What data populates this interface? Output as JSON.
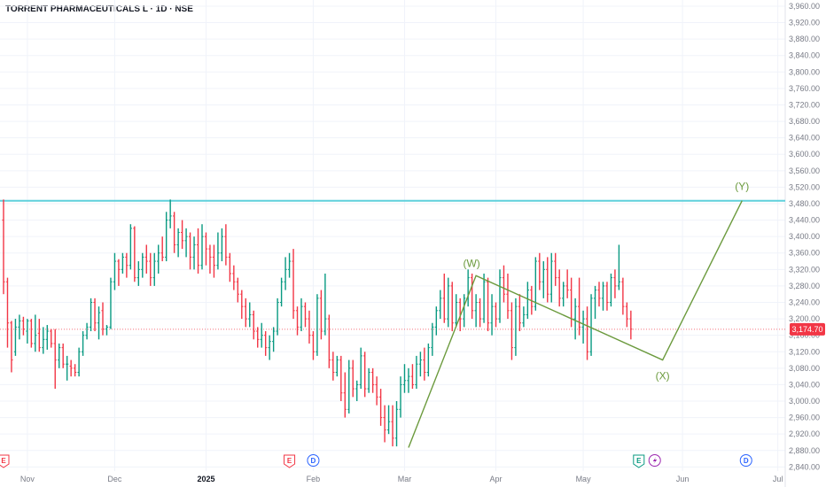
{
  "header": {
    "symbol": "TORRENT PHARMACEUTICALS L",
    "interval": "1D",
    "exchange": "NSE",
    "separator": " · "
  },
  "current_price": {
    "label": "3,174.70",
    "value": 3174.7,
    "color": "#f23645"
  },
  "colors": {
    "up": "#089981",
    "down": "#f23645",
    "resistance": "#5fd0dc",
    "wave": "#6b9a3d",
    "earnings": "#f23645",
    "earnings_upcoming": "#089981",
    "dividend": "#2962ff",
    "split": "#9c27b0"
  },
  "chart_data": {
    "type": "ohlc_bar",
    "price_axis": {
      "ylim": [
        2830,
        3975
      ],
      "ticks": [
        "3,960.00",
        "3,920.00",
        "3,880.00",
        "3,840.00",
        "3,800.00",
        "3,760.00",
        "3,720.00",
        "3,680.00",
        "3,640.00",
        "3,600.00",
        "3,560.00",
        "3,520.00",
        "3,480.00",
        "3,440.00",
        "3,400.00",
        "3,360.00",
        "3,320.00",
        "3,280.00",
        "3,240.00",
        "3,200.00",
        "3,160.00",
        "3,120.00",
        "3,080.00",
        "3,040.00",
        "3,000.00",
        "2,960.00",
        "2,920.00",
        "2,880.00",
        "2,840.00"
      ]
    },
    "time_axis": {
      "labels": [
        {
          "text": "Nov",
          "bar": 6,
          "bold": false
        },
        {
          "text": "Dec",
          "bar": 28,
          "bold": false
        },
        {
          "text": "2025",
          "bar": 51,
          "bold": true
        },
        {
          "text": "Feb",
          "bar": 78,
          "bold": false
        },
        {
          "text": "Mar",
          "bar": 101,
          "bold": false
        },
        {
          "text": "Apr",
          "bar": 124,
          "bold": false
        },
        {
          "text": "May",
          "bar": 146,
          "bold": false
        },
        {
          "text": "Jun",
          "bar": 171,
          "bold": false
        },
        {
          "text": "Jul",
          "bar": 195,
          "bold": false
        }
      ]
    },
    "horizontal_line": {
      "name": "resistance",
      "value": 3487
    },
    "waves": {
      "points": [
        {
          "label": "",
          "bar": 102,
          "value": 2887
        },
        {
          "label": "(W)",
          "bar": 119,
          "value": 3305
        },
        {
          "label": "(X)",
          "bar": 166,
          "value": 3100
        },
        {
          "label": "(Y)",
          "bar": 186,
          "value": 3487
        }
      ]
    },
    "events": [
      {
        "type": "E",
        "bar": 0
      },
      {
        "type": "E",
        "bar": 72
      },
      {
        "type": "D",
        "bar": 78
      },
      {
        "type": "E",
        "bar": 160
      },
      {
        "type": "split",
        "bar": 164
      },
      {
        "type": "D",
        "bar": 187
      }
    ],
    "bars": [
      {
        "o": 3440,
        "h": 3490,
        "l": 3260,
        "c": 3290
      },
      {
        "o": 3290,
        "h": 3300,
        "l": 3130,
        "c": 3190
      },
      {
        "o": 3190,
        "h": 3195,
        "l": 3070,
        "c": 3100
      },
      {
        "o": 3120,
        "h": 3200,
        "l": 3110,
        "c": 3180
      },
      {
        "o": 3180,
        "h": 3210,
        "l": 3150,
        "c": 3195
      },
      {
        "o": 3195,
        "h": 3205,
        "l": 3160,
        "c": 3175
      },
      {
        "o": 3170,
        "h": 3200,
        "l": 3140,
        "c": 3195
      },
      {
        "o": 3195,
        "h": 3200,
        "l": 3130,
        "c": 3140
      },
      {
        "o": 3140,
        "h": 3210,
        "l": 3120,
        "c": 3160
      },
      {
        "o": 3165,
        "h": 3200,
        "l": 3120,
        "c": 3130
      },
      {
        "o": 3130,
        "h": 3180,
        "l": 3115,
        "c": 3150
      },
      {
        "o": 3150,
        "h": 3185,
        "l": 3125,
        "c": 3170
      },
      {
        "o": 3170,
        "h": 3175,
        "l": 3130,
        "c": 3140
      },
      {
        "o": 3140,
        "h": 3175,
        "l": 3030,
        "c": 3100
      },
      {
        "o": 3100,
        "h": 3140,
        "l": 3080,
        "c": 3130
      },
      {
        "o": 3130,
        "h": 3140,
        "l": 3080,
        "c": 3090
      },
      {
        "o": 3090,
        "h": 3110,
        "l": 3050,
        "c": 3090
      },
      {
        "o": 3085,
        "h": 3100,
        "l": 3060,
        "c": 3080
      },
      {
        "o": 3080,
        "h": 3090,
        "l": 3060,
        "c": 3070
      },
      {
        "o": 3070,
        "h": 3130,
        "l": 3060,
        "c": 3120
      },
      {
        "o": 3120,
        "h": 3170,
        "l": 3110,
        "c": 3160
      },
      {
        "o": 3160,
        "h": 3190,
        "l": 3150,
        "c": 3180
      },
      {
        "o": 3180,
        "h": 3250,
        "l": 3170,
        "c": 3240
      },
      {
        "o": 3240,
        "h": 3250,
        "l": 3170,
        "c": 3190
      },
      {
        "o": 3190,
        "h": 3230,
        "l": 3150,
        "c": 3215
      },
      {
        "o": 3220,
        "h": 3240,
        "l": 3160,
        "c": 3175
      },
      {
        "o": 3175,
        "h": 3185,
        "l": 3160,
        "c": 3180
      },
      {
        "o": 3180,
        "h": 3300,
        "l": 3175,
        "c": 3290
      },
      {
        "o": 3290,
        "h": 3360,
        "l": 3270,
        "c": 3340
      },
      {
        "o": 3340,
        "h": 3345,
        "l": 3280,
        "c": 3320
      },
      {
        "o": 3320,
        "h": 3360,
        "l": 3310,
        "c": 3350
      },
      {
        "o": 3350,
        "h": 3360,
        "l": 3300,
        "c": 3330
      },
      {
        "o": 3330,
        "h": 3430,
        "l": 3320,
        "c": 3420
      },
      {
        "o": 3420,
        "h": 3425,
        "l": 3290,
        "c": 3300
      },
      {
        "o": 3300,
        "h": 3340,
        "l": 3280,
        "c": 3320
      },
      {
        "o": 3320,
        "h": 3360,
        "l": 3300,
        "c": 3350
      },
      {
        "o": 3350,
        "h": 3380,
        "l": 3310,
        "c": 3340
      },
      {
        "o": 3340,
        "h": 3360,
        "l": 3280,
        "c": 3300
      },
      {
        "o": 3300,
        "h": 3360,
        "l": 3280,
        "c": 3340
      },
      {
        "o": 3340,
        "h": 3380,
        "l": 3310,
        "c": 3360
      },
      {
        "o": 3360,
        "h": 3400,
        "l": 3340,
        "c": 3350
      },
      {
        "o": 3350,
        "h": 3460,
        "l": 3340,
        "c": 3440
      },
      {
        "o": 3440,
        "h": 3490,
        "l": 3420,
        "c": 3450
      },
      {
        "o": 3450,
        "h": 3460,
        "l": 3360,
        "c": 3380
      },
      {
        "o": 3380,
        "h": 3420,
        "l": 3350,
        "c": 3410
      },
      {
        "o": 3410,
        "h": 3440,
        "l": 3370,
        "c": 3390
      },
      {
        "o": 3390,
        "h": 3420,
        "l": 3350,
        "c": 3400
      },
      {
        "o": 3400,
        "h": 3410,
        "l": 3320,
        "c": 3350
      },
      {
        "o": 3350,
        "h": 3400,
        "l": 3320,
        "c": 3380
      },
      {
        "o": 3380,
        "h": 3420,
        "l": 3310,
        "c": 3330
      },
      {
        "o": 3330,
        "h": 3430,
        "l": 3320,
        "c": 3400
      },
      {
        "o": 3400,
        "h": 3410,
        "l": 3330,
        "c": 3370
      },
      {
        "o": 3370,
        "h": 3380,
        "l": 3310,
        "c": 3350
      },
      {
        "o": 3350,
        "h": 3380,
        "l": 3300,
        "c": 3330
      },
      {
        "o": 3330,
        "h": 3410,
        "l": 3320,
        "c": 3360
      },
      {
        "o": 3360,
        "h": 3420,
        "l": 3340,
        "c": 3400
      },
      {
        "o": 3400,
        "h": 3430,
        "l": 3330,
        "c": 3350
      },
      {
        "o": 3350,
        "h": 3360,
        "l": 3290,
        "c": 3310
      },
      {
        "o": 3310,
        "h": 3330,
        "l": 3270,
        "c": 3290
      },
      {
        "o": 3290,
        "h": 3300,
        "l": 3240,
        "c": 3260
      },
      {
        "o": 3260,
        "h": 3270,
        "l": 3200,
        "c": 3230
      },
      {
        "o": 3230,
        "h": 3250,
        "l": 3180,
        "c": 3200
      },
      {
        "o": 3200,
        "h": 3240,
        "l": 3180,
        "c": 3210
      },
      {
        "o": 3210,
        "h": 3220,
        "l": 3150,
        "c": 3170
      },
      {
        "o": 3170,
        "h": 3180,
        "l": 3130,
        "c": 3150
      },
      {
        "o": 3150,
        "h": 3190,
        "l": 3130,
        "c": 3160
      },
      {
        "o": 3160,
        "h": 3170,
        "l": 3110,
        "c": 3130
      },
      {
        "o": 3130,
        "h": 3160,
        "l": 3100,
        "c": 3145
      },
      {
        "o": 3145,
        "h": 3180,
        "l": 3120,
        "c": 3170
      },
      {
        "o": 3170,
        "h": 3250,
        "l": 3160,
        "c": 3240
      },
      {
        "o": 3240,
        "h": 3300,
        "l": 3230,
        "c": 3290
      },
      {
        "o": 3290,
        "h": 3350,
        "l": 3270,
        "c": 3320
      },
      {
        "o": 3320,
        "h": 3360,
        "l": 3300,
        "c": 3340
      },
      {
        "o": 3340,
        "h": 3370,
        "l": 3200,
        "c": 3220
      },
      {
        "o": 3220,
        "h": 3230,
        "l": 3160,
        "c": 3180
      },
      {
        "o": 3180,
        "h": 3250,
        "l": 3170,
        "c": 3230
      },
      {
        "o": 3230,
        "h": 3240,
        "l": 3180,
        "c": 3200
      },
      {
        "o": 3200,
        "h": 3220,
        "l": 3140,
        "c": 3160
      },
      {
        "o": 3160,
        "h": 3170,
        "l": 3100,
        "c": 3120
      },
      {
        "o": 3120,
        "h": 3260,
        "l": 3110,
        "c": 3250
      },
      {
        "o": 3250,
        "h": 3270,
        "l": 3150,
        "c": 3170
      },
      {
        "o": 3170,
        "h": 3310,
        "l": 3160,
        "c": 3200
      },
      {
        "o": 3200,
        "h": 3210,
        "l": 3080,
        "c": 3100
      },
      {
        "o": 3100,
        "h": 3120,
        "l": 3050,
        "c": 3070
      },
      {
        "o": 3070,
        "h": 3110,
        "l": 3060,
        "c": 3100
      },
      {
        "o": 3100,
        "h": 3110,
        "l": 3000,
        "c": 3020
      },
      {
        "o": 3020,
        "h": 3070,
        "l": 2960,
        "c": 2980
      },
      {
        "o": 2980,
        "h": 3100,
        "l": 2970,
        "c": 3080
      },
      {
        "o": 3080,
        "h": 3100,
        "l": 3010,
        "c": 3030
      },
      {
        "o": 3030,
        "h": 3050,
        "l": 3000,
        "c": 3040
      },
      {
        "o": 3040,
        "h": 3130,
        "l": 3030,
        "c": 3110
      },
      {
        "o": 3110,
        "h": 3120,
        "l": 3010,
        "c": 3030
      },
      {
        "o": 3030,
        "h": 3080,
        "l": 3020,
        "c": 3070
      },
      {
        "o": 3070,
        "h": 3080,
        "l": 3020,
        "c": 3040
      },
      {
        "o": 3040,
        "h": 3060,
        "l": 2990,
        "c": 3010
      },
      {
        "o": 3010,
        "h": 3030,
        "l": 2940,
        "c": 2960
      },
      {
        "o": 2960,
        "h": 2990,
        "l": 2900,
        "c": 2930
      },
      {
        "o": 2930,
        "h": 2990,
        "l": 2920,
        "c": 2950
      },
      {
        "o": 2950,
        "h": 2990,
        "l": 2890,
        "c": 2910
      },
      {
        "o": 2910,
        "h": 3000,
        "l": 2890,
        "c": 2980
      },
      {
        "o": 2980,
        "h": 3060,
        "l": 2960,
        "c": 3040
      },
      {
        "o": 3040,
        "h": 3090,
        "l": 3020,
        "c": 3050
      },
      {
        "o": 3050,
        "h": 3080,
        "l": 3020,
        "c": 3060
      },
      {
        "o": 3060,
        "h": 3090,
        "l": 3030,
        "c": 3040
      },
      {
        "o": 3040,
        "h": 3110,
        "l": 3030,
        "c": 3090
      },
      {
        "o": 3090,
        "h": 3120,
        "l": 3060,
        "c": 3100
      },
      {
        "o": 3100,
        "h": 3130,
        "l": 3050,
        "c": 3070
      },
      {
        "o": 3070,
        "h": 3140,
        "l": 3060,
        "c": 3130
      },
      {
        "o": 3130,
        "h": 3190,
        "l": 3110,
        "c": 3180
      },
      {
        "o": 3180,
        "h": 3230,
        "l": 3160,
        "c": 3220
      },
      {
        "o": 3220,
        "h": 3270,
        "l": 3200,
        "c": 3250
      },
      {
        "o": 3250,
        "h": 3310,
        "l": 3190,
        "c": 3200
      },
      {
        "o": 3200,
        "h": 3300,
        "l": 3180,
        "c": 3280
      },
      {
        "o": 3280,
        "h": 3290,
        "l": 3170,
        "c": 3190
      },
      {
        "o": 3190,
        "h": 3260,
        "l": 3180,
        "c": 3240
      },
      {
        "o": 3240,
        "h": 3250,
        "l": 3170,
        "c": 3200
      },
      {
        "o": 3200,
        "h": 3260,
        "l": 3180,
        "c": 3250
      },
      {
        "o": 3250,
        "h": 3320,
        "l": 3230,
        "c": 3300
      },
      {
        "o": 3300,
        "h": 3310,
        "l": 3200,
        "c": 3220
      },
      {
        "o": 3220,
        "h": 3260,
        "l": 3180,
        "c": 3240
      },
      {
        "o": 3240,
        "h": 3250,
        "l": 3180,
        "c": 3200
      },
      {
        "o": 3200,
        "h": 3310,
        "l": 3190,
        "c": 3290
      },
      {
        "o": 3290,
        "h": 3300,
        "l": 3170,
        "c": 3190
      },
      {
        "o": 3190,
        "h": 3260,
        "l": 3160,
        "c": 3230
      },
      {
        "o": 3230,
        "h": 3240,
        "l": 3180,
        "c": 3200
      },
      {
        "o": 3200,
        "h": 3320,
        "l": 3190,
        "c": 3300
      },
      {
        "o": 3300,
        "h": 3330,
        "l": 3240,
        "c": 3260
      },
      {
        "o": 3260,
        "h": 3310,
        "l": 3200,
        "c": 3220
      },
      {
        "o": 3220,
        "h": 3240,
        "l": 3100,
        "c": 3130
      },
      {
        "o": 3130,
        "h": 3250,
        "l": 3110,
        "c": 3230
      },
      {
        "o": 3230,
        "h": 3260,
        "l": 3170,
        "c": 3190
      },
      {
        "o": 3190,
        "h": 3230,
        "l": 3180,
        "c": 3210
      },
      {
        "o": 3210,
        "h": 3290,
        "l": 3200,
        "c": 3270
      },
      {
        "o": 3270,
        "h": 3280,
        "l": 3210,
        "c": 3230
      },
      {
        "o": 3230,
        "h": 3350,
        "l": 3220,
        "c": 3340
      },
      {
        "o": 3340,
        "h": 3360,
        "l": 3270,
        "c": 3290
      },
      {
        "o": 3290,
        "h": 3340,
        "l": 3250,
        "c": 3320
      },
      {
        "o": 3320,
        "h": 3350,
        "l": 3240,
        "c": 3260
      },
      {
        "o": 3260,
        "h": 3360,
        "l": 3240,
        "c": 3340
      },
      {
        "o": 3340,
        "h": 3360,
        "l": 3280,
        "c": 3300
      },
      {
        "o": 3300,
        "h": 3320,
        "l": 3230,
        "c": 3250
      },
      {
        "o": 3250,
        "h": 3290,
        "l": 3230,
        "c": 3280
      },
      {
        "o": 3280,
        "h": 3320,
        "l": 3250,
        "c": 3270
      },
      {
        "o": 3270,
        "h": 3300,
        "l": 3180,
        "c": 3200
      },
      {
        "o": 3200,
        "h": 3250,
        "l": 3150,
        "c": 3230
      },
      {
        "o": 3230,
        "h": 3300,
        "l": 3160,
        "c": 3180
      },
      {
        "o": 3180,
        "h": 3220,
        "l": 3140,
        "c": 3200
      },
      {
        "o": 3200,
        "h": 3230,
        "l": 3100,
        "c": 3120
      },
      {
        "o": 3120,
        "h": 3260,
        "l": 3110,
        "c": 3250
      },
      {
        "o": 3250,
        "h": 3280,
        "l": 3200,
        "c": 3270
      },
      {
        "o": 3270,
        "h": 3290,
        "l": 3230,
        "c": 3250
      },
      {
        "o": 3250,
        "h": 3290,
        "l": 3220,
        "c": 3280
      },
      {
        "o": 3280,
        "h": 3290,
        "l": 3220,
        "c": 3240
      },
      {
        "o": 3240,
        "h": 3310,
        "l": 3230,
        "c": 3300
      },
      {
        "o": 3300,
        "h": 3320,
        "l": 3250,
        "c": 3280
      },
      {
        "o": 3280,
        "h": 3380,
        "l": 3270,
        "c": 3290
      },
      {
        "o": 3290,
        "h": 3300,
        "l": 3210,
        "c": 3230
      },
      {
        "o": 3230,
        "h": 3240,
        "l": 3180,
        "c": 3200
      },
      {
        "o": 3200,
        "h": 3220,
        "l": 3150,
        "c": 3175
      }
    ]
  }
}
